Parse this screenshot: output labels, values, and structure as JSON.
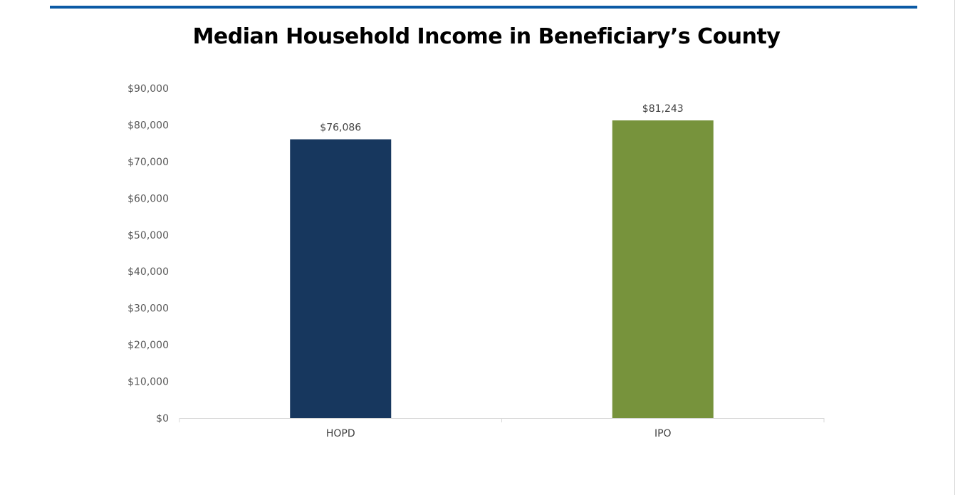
{
  "chart_data": {
    "type": "bar",
    "title": "Median Household Income in Beneficiary’s County",
    "categories": [
      "HOPD",
      "IPO"
    ],
    "values": [
      76086,
      81243
    ],
    "data_labels": [
      "$76,086",
      "$81,243"
    ],
    "bar_colors": [
      "#17375e",
      "#77933c"
    ],
    "ylim": [
      0,
      90000
    ],
    "y_ticks": [
      0,
      10000,
      20000,
      30000,
      40000,
      50000,
      60000,
      70000,
      80000,
      90000
    ],
    "y_tick_labels": [
      "$0",
      "$10,000",
      "$20,000",
      "$30,000",
      "$40,000",
      "$50,000",
      "$60,000",
      "$70,000",
      "$80,000",
      "$90,000"
    ],
    "xlabel": "",
    "ylabel": "",
    "grid": false,
    "legend": "none"
  },
  "accent_color": "#0b5aa5"
}
